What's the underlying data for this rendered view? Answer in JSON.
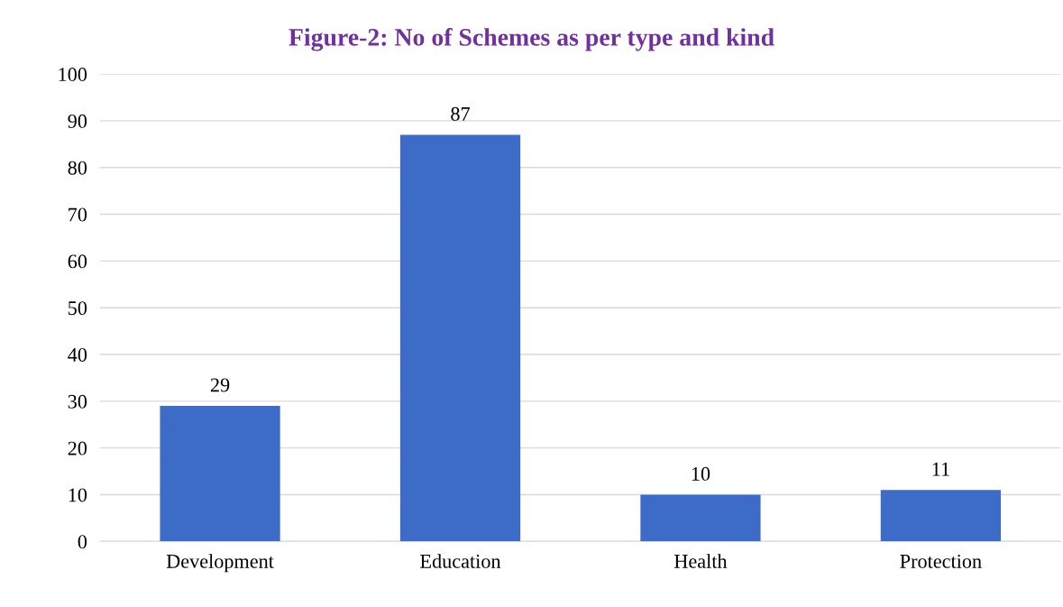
{
  "chart_data": {
    "type": "bar",
    "title": "Figure-2: No of Schemes as per type and kind",
    "categories": [
      "Development",
      "Education",
      "Health",
      "Protection"
    ],
    "values": [
      29,
      87,
      10,
      11
    ],
    "color": "#3d6cc8",
    "ylim": [
      0,
      100
    ],
    "yticks": [
      0,
      10,
      20,
      30,
      40,
      50,
      60,
      70,
      80,
      90,
      100
    ],
    "grid": "y",
    "data_labels": true,
    "legend": false
  }
}
